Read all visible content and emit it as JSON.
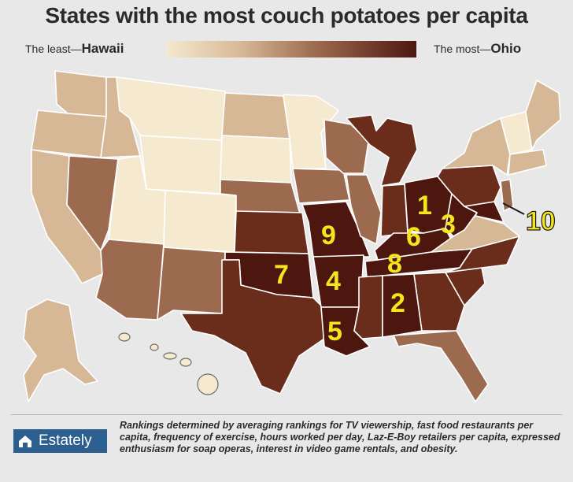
{
  "title": "States with the most couch potatoes per capita",
  "legend": {
    "least_prefix": "The least—",
    "least_state": "Hawaii",
    "most_prefix": "The most—",
    "most_state": "Ohio"
  },
  "colors": {
    "lightest": "#f5e9cf",
    "light": "#d7b896",
    "medium": "#9c6a4e",
    "dark": "#6a2c1b",
    "darkest": "#4d1710",
    "rank_label": "#f4e61c",
    "logo_bg": "#2c5f8f"
  },
  "rankings": [
    {
      "rank": "1",
      "state": "Ohio"
    },
    {
      "rank": "2",
      "state": "Alabama"
    },
    {
      "rank": "3",
      "state": "West Virginia"
    },
    {
      "rank": "4",
      "state": "Arkansas"
    },
    {
      "rank": "5",
      "state": "Louisiana"
    },
    {
      "rank": "6",
      "state": "Kentucky"
    },
    {
      "rank": "7",
      "state": "Oklahoma"
    },
    {
      "rank": "8",
      "state": "Tennessee"
    },
    {
      "rank": "9",
      "state": "Missouri"
    },
    {
      "rank": "10",
      "state": "Maryland"
    }
  ],
  "footer": {
    "logo_text": "Estately",
    "logo_icon": "house-icon",
    "note": "Rankings determined by averaging rankings for TV viewership, fast food restaurants per capita, frequency of exercise, hours worked per day, Laz-E-Boy retailers per capita, expressed enthusiasm for soap operas, interest in video game rentals, and obesity."
  }
}
